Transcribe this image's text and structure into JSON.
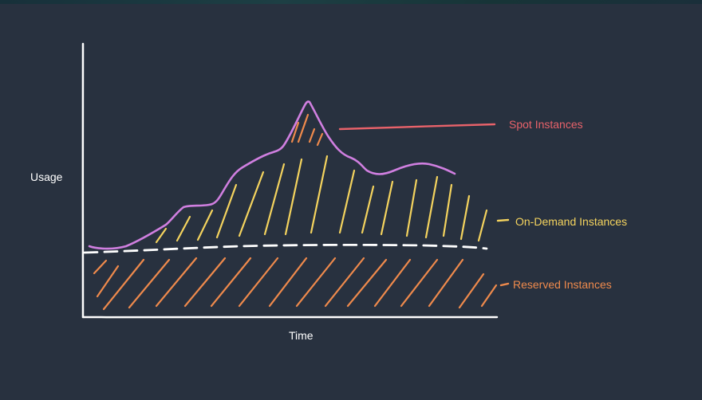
{
  "axes": {
    "y_label": "Usage",
    "x_label": "Time"
  },
  "legend": [
    {
      "key": "spot",
      "label": "Spot Instances",
      "color": "#e8626a"
    },
    {
      "key": "on_demand",
      "label": "On-Demand Instances",
      "color": "#f4d35e"
    },
    {
      "key": "reserved",
      "label": "Reserved Instances",
      "color": "#ef8a4c"
    }
  ],
  "colors": {
    "background": "#28313f",
    "axis": "#ffffff",
    "usage_curve": "#d07fe0",
    "reserved_baseline": "#ffffff",
    "spot_hatch": "#ef8a4c"
  }
}
